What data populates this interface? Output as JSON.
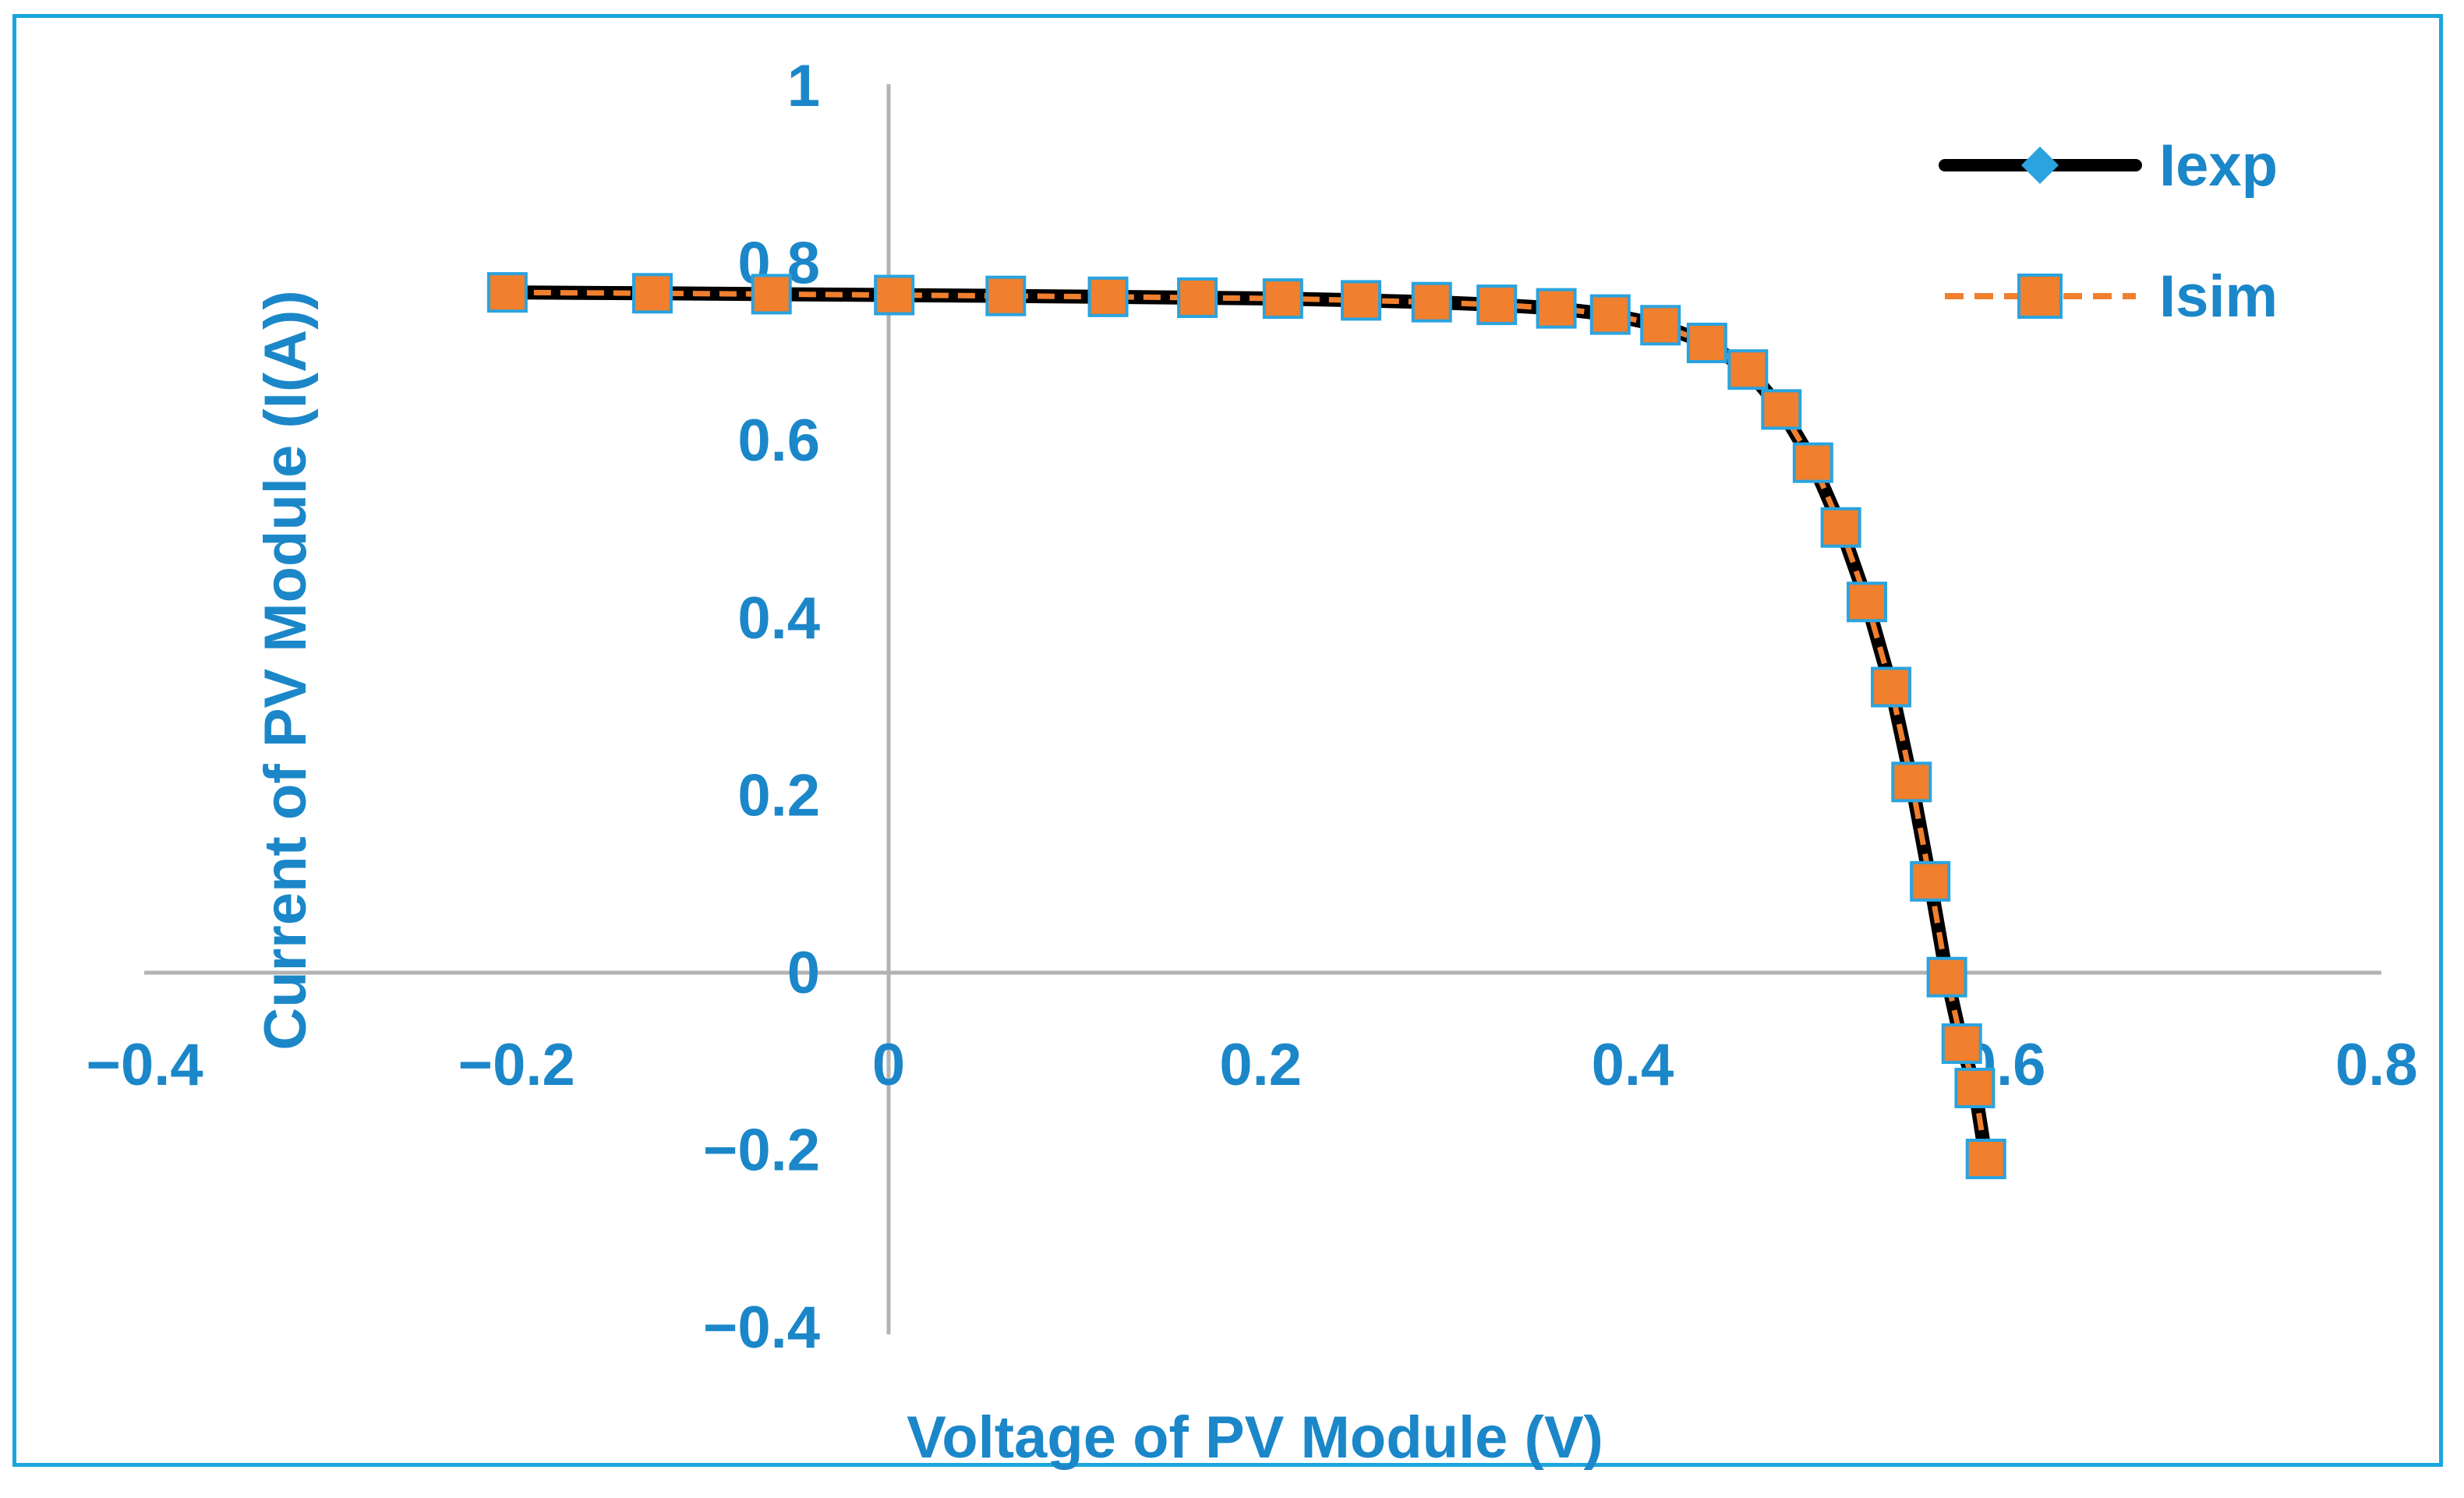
{
  "chart_data": {
    "type": "line",
    "title": "",
    "xlabel": "Voltage of PV Module (V)",
    "ylabel": "Current of PV Module (I(A))",
    "xlim": [
      -0.4,
      0.8
    ],
    "ylim": [
      -0.4,
      1.0
    ],
    "x_ticks": [
      -0.4,
      -0.2,
      0,
      0.2,
      0.4,
      0.6,
      0.8
    ],
    "y_ticks": [
      -0.4,
      -0.2,
      0,
      0.2,
      0.4,
      0.6,
      0.8,
      1
    ],
    "x_tick_labels": [
      "−0.4",
      "−0.2",
      "0",
      "0.2",
      "0.4",
      "0.6",
      "0.8"
    ],
    "y_tick_labels": [
      "−0.4",
      "−0.2",
      "0",
      "0.2",
      "0.4",
      "0.6",
      "0.8",
      "1"
    ],
    "legend_position": "top-right",
    "colors": {
      "frame": "#1aa6dc",
      "text": "#1b87c9",
      "axis": "#b3b3b3",
      "iexp_line": "#000000",
      "iexp_marker": "#2aa3df",
      "isim_line": "#f07f2e",
      "isim_marker": "#f07f2e",
      "isim_marker_edge": "#2aa3df"
    },
    "series": [
      {
        "name": "Iexp",
        "marker": "diamond",
        "x": [
          -0.205,
          -0.127,
          -0.063,
          0.003,
          0.063,
          0.118,
          0.166,
          0.212,
          0.254,
          0.292,
          0.327,
          0.359,
          0.388,
          0.415,
          0.44,
          0.462,
          0.48,
          0.497,
          0.512,
          0.526,
          0.539,
          0.55,
          0.56,
          0.569,
          0.577,
          0.584,
          0.59
        ],
        "y": [
          0.767,
          0.766,
          0.765,
          0.764,
          0.763,
          0.762,
          0.761,
          0.76,
          0.758,
          0.756,
          0.753,
          0.749,
          0.742,
          0.73,
          0.71,
          0.68,
          0.635,
          0.575,
          0.502,
          0.418,
          0.322,
          0.215,
          0.103,
          -0.005,
          -0.08,
          -0.13,
          -0.21
        ]
      },
      {
        "name": "Isim",
        "marker": "square",
        "x": [
          -0.205,
          -0.127,
          -0.063,
          0.003,
          0.063,
          0.118,
          0.166,
          0.212,
          0.254,
          0.292,
          0.327,
          0.359,
          0.388,
          0.415,
          0.44,
          0.462,
          0.48,
          0.497,
          0.512,
          0.526,
          0.539,
          0.55,
          0.56,
          0.569,
          0.577,
          0.584,
          0.59
        ],
        "y": [
          0.767,
          0.766,
          0.765,
          0.764,
          0.763,
          0.762,
          0.761,
          0.76,
          0.758,
          0.756,
          0.753,
          0.749,
          0.742,
          0.73,
          0.71,
          0.68,
          0.635,
          0.575,
          0.502,
          0.418,
          0.322,
          0.215,
          0.103,
          -0.005,
          -0.08,
          -0.13,
          -0.21
        ]
      }
    ]
  }
}
